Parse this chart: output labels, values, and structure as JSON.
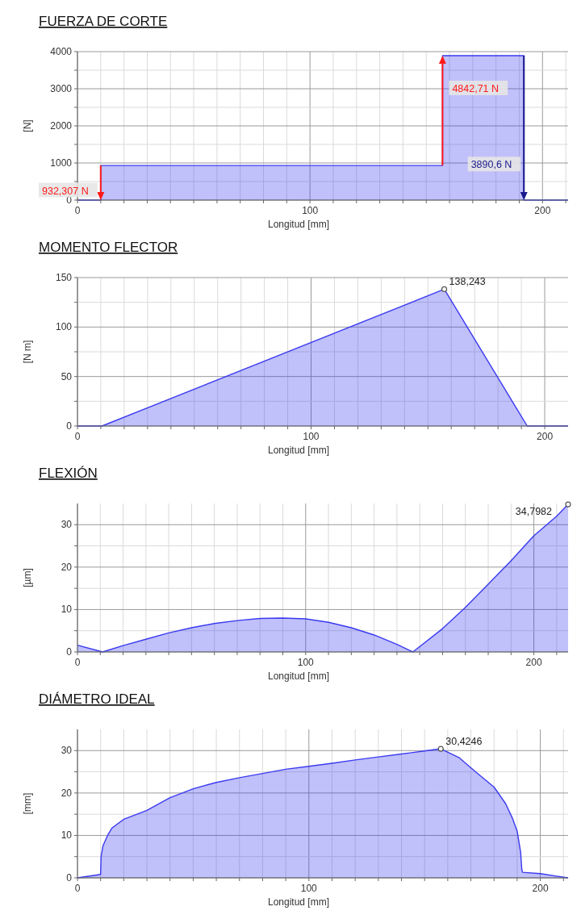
{
  "chart_data": [
    {
      "type": "area",
      "title": "FUERZA DE CORTE",
      "xlabel": "Longitud [mm]",
      "ylabel": "[N]",
      "grid": true,
      "marker": "none",
      "series": [
        {
          "color": "#3a3af0",
          "x": [
            0,
            10,
            10,
            157,
            157,
            192,
            192,
            211
          ],
          "values": [
            0,
            0,
            932.307,
            932.307,
            3890.6,
            3890.6,
            0,
            0
          ]
        }
      ],
      "xlim": [
        0,
        211
      ],
      "xticks": [
        0,
        {
          "value": 10,
          "label": null
        },
        {
          "value": 20,
          "label": null
        },
        {
          "value": 30,
          "label": null
        },
        {
          "value": 40,
          "label": null
        },
        {
          "value": 50,
          "label": null
        },
        {
          "value": 60,
          "label": null
        },
        {
          "value": 70,
          "label": null
        },
        {
          "value": 80,
          "label": null
        },
        {
          "value": 90,
          "label": null
        },
        100,
        {
          "value": 110,
          "label": null
        },
        {
          "value": 120,
          "label": null
        },
        {
          "value": 130,
          "label": null
        },
        {
          "value": 140,
          "label": null
        },
        {
          "value": 150,
          "label": null
        },
        {
          "value": 160,
          "label": null
        },
        {
          "value": 170,
          "label": null
        },
        {
          "value": 180,
          "label": null
        },
        {
          "value": 190,
          "label": null
        },
        200,
        {
          "value": 210,
          "label": null
        }
      ],
      "ylim": [
        0,
        4000
      ],
      "yticks": [
        0,
        {
          "value": 500,
          "label": null
        },
        1000,
        {
          "value": 1500,
          "label": null
        },
        2000,
        {
          "value": 2500,
          "label": null
        },
        3000,
        {
          "value": 3500,
          "label": null
        },
        4000
      ],
      "annotations": [
        {
          "text": "932,307 N",
          "x": 10,
          "y": 250
        },
        {
          "text": "4842,71 N",
          "x": 157,
          "y": 3000
        },
        {
          "text": "3890,6 N",
          "x": 192,
          "y": 950
        }
      ]
    },
    {
      "type": "area",
      "title": "MOMENTO FLECTOR",
      "xlabel": "Longitud [mm]",
      "ylabel": "[N m]",
      "grid": true,
      "marker": "none",
      "series": [
        {
          "color": "#3a3af0",
          "x": [
            0,
            10.5,
            157,
            192.5,
            210
          ],
          "values": [
            0,
            0,
            138.243,
            0,
            0
          ]
        }
      ],
      "xlim": [
        0,
        210
      ],
      "xticks": [
        0,
        {
          "value": 10,
          "label": null
        },
        {
          "value": 20,
          "label": null
        },
        {
          "value": 30,
          "label": null
        },
        {
          "value": 40,
          "label": null
        },
        {
          "value": 50,
          "label": null
        },
        {
          "value": 60,
          "label": null
        },
        {
          "value": 70,
          "label": null
        },
        {
          "value": 80,
          "label": null
        },
        {
          "value": 90,
          "label": null
        },
        100,
        {
          "value": 110,
          "label": null
        },
        {
          "value": 120,
          "label": null
        },
        {
          "value": 130,
          "label": null
        },
        {
          "value": 140,
          "label": null
        },
        {
          "value": 150,
          "label": null
        },
        {
          "value": 160,
          "label": null
        },
        {
          "value": 170,
          "label": null
        },
        {
          "value": 180,
          "label": null
        },
        {
          "value": 190,
          "label": null
        },
        200
      ],
      "ylim": [
        0,
        150
      ],
      "yticks": [
        0,
        {
          "value": 25,
          "label": null
        },
        50,
        {
          "value": 75,
          "label": null
        },
        100,
        {
          "value": 125,
          "label": null
        },
        150
      ],
      "annotations": [
        {
          "text": "138,243",
          "x": 157,
          "y": 138.243
        }
      ]
    },
    {
      "type": "area",
      "title": "FLEXIÓN",
      "xlabel": "Longitud [mm]",
      "ylabel": "[µm]",
      "grid": true,
      "marker": "none",
      "series": [
        {
          "color": "#3a3af0",
          "x": [
            0,
            11,
            20,
            30,
            40,
            50,
            60,
            70,
            80,
            90,
            100,
            110,
            120,
            130,
            140,
            147,
            160,
            170,
            180,
            190,
            200,
            210,
            215
          ],
          "values": [
            1.6,
            0,
            1.5,
            3,
            4.5,
            5.7,
            6.7,
            7.4,
            7.9,
            8,
            7.8,
            7,
            5.7,
            4,
            1.8,
            0,
            5.5,
            10.5,
            16,
            21.5,
            27.4,
            32,
            34.7982
          ]
        }
      ],
      "xlim": [
        0,
        215
      ],
      "xticks": [
        0,
        {
          "value": 10,
          "label": null
        },
        {
          "value": 20,
          "label": null
        },
        {
          "value": 30,
          "label": null
        },
        {
          "value": 40,
          "label": null
        },
        {
          "value": 50,
          "label": null
        },
        {
          "value": 60,
          "label": null
        },
        {
          "value": 70,
          "label": null
        },
        {
          "value": 80,
          "label": null
        },
        {
          "value": 90,
          "label": null
        },
        100,
        {
          "value": 110,
          "label": null
        },
        {
          "value": 120,
          "label": null
        },
        {
          "value": 130,
          "label": null
        },
        {
          "value": 140,
          "label": null
        },
        {
          "value": 150,
          "label": null
        },
        {
          "value": 160,
          "label": null
        },
        {
          "value": 170,
          "label": null
        },
        {
          "value": 180,
          "label": null
        },
        {
          "value": 190,
          "label": null
        },
        200,
        {
          "value": 210,
          "label": null
        }
      ],
      "ylim": [
        0,
        35
      ],
      "yticks": [
        0,
        {
          "value": 5,
          "label": null
        },
        10,
        {
          "value": 15,
          "label": null
        },
        20,
        {
          "value": 25,
          "label": null
        },
        30
      ],
      "annotations": [
        {
          "text": "34,7982",
          "x": 215,
          "y": 34.7982
        }
      ]
    },
    {
      "type": "area",
      "title": "DIÁMETRO  IDEAL",
      "xlabel": "Longitud [mm]",
      "ylabel": "[mm]",
      "grid": true,
      "marker": "none",
      "series": [
        {
          "color": "#3a3af0",
          "x": [
            0,
            10,
            10.2,
            11,
            13,
            15,
            20,
            30,
            40,
            50,
            60,
            70,
            80,
            90,
            100,
            110,
            120,
            130,
            140,
            150,
            157,
            165,
            172,
            180,
            185,
            188,
            190,
            191.5,
            192,
            192.3,
            200,
            207,
            212
          ],
          "values": [
            0,
            0.8,
            5,
            7.5,
            10,
            11.8,
            13.8,
            15.9,
            18.9,
            21,
            22.5,
            23.6,
            24.6,
            25.6,
            26.3,
            27,
            27.8,
            28.5,
            29.2,
            29.9,
            30.4246,
            28.3,
            25,
            21.4,
            17.5,
            14,
            11,
            6,
            2,
            1.3,
            1,
            0.4,
            0
          ]
        }
      ],
      "xlim": [
        0,
        212
      ],
      "xticks": [
        0,
        {
          "value": 10,
          "label": null
        },
        {
          "value": 20,
          "label": null
        },
        {
          "value": 30,
          "label": null
        },
        {
          "value": 40,
          "label": null
        },
        {
          "value": 50,
          "label": null
        },
        {
          "value": 60,
          "label": null
        },
        {
          "value": 70,
          "label": null
        },
        {
          "value": 80,
          "label": null
        },
        {
          "value": 90,
          "label": null
        },
        100,
        {
          "value": 110,
          "label": null
        },
        {
          "value": 120,
          "label": null
        },
        {
          "value": 130,
          "label": null
        },
        {
          "value": 140,
          "label": null
        },
        {
          "value": 150,
          "label": null
        },
        {
          "value": 160,
          "label": null
        },
        {
          "value": 170,
          "label": null
        },
        {
          "value": 180,
          "label": null
        },
        {
          "value": 190,
          "label": null
        },
        200,
        {
          "value": 210,
          "label": null
        }
      ],
      "ylim": [
        0,
        35
      ],
      "yticks": [
        0,
        {
          "value": 5,
          "label": null
        },
        10,
        {
          "value": 15,
          "label": null
        },
        20,
        {
          "value": 25,
          "label": null
        },
        30
      ],
      "annotations": [
        {
          "text": "30,4246",
          "x": 157,
          "y": 30.4246
        }
      ]
    }
  ]
}
